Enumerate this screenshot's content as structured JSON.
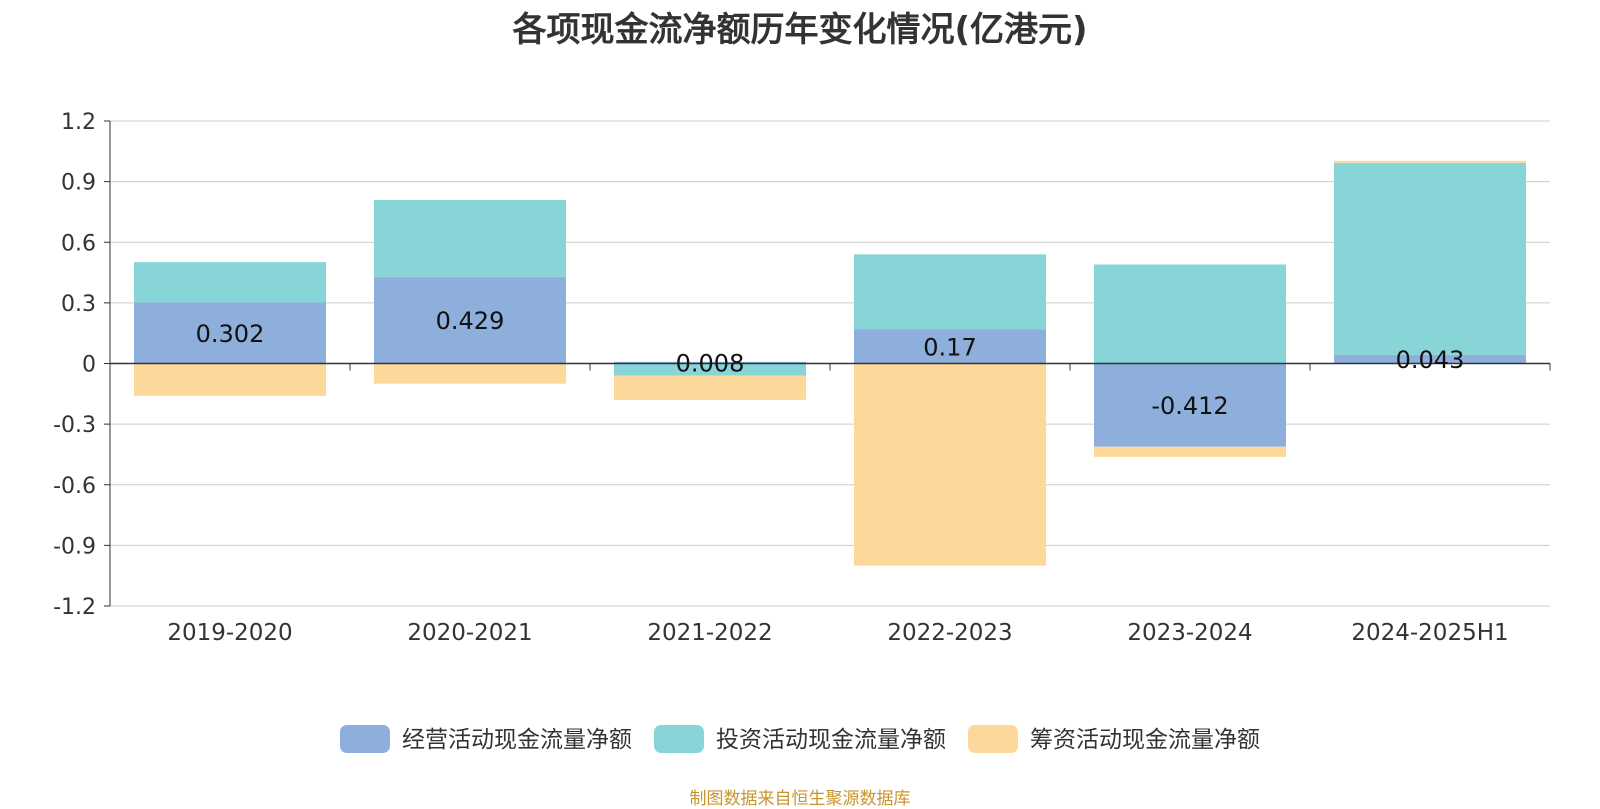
{
  "page": {
    "source_note": "制图数据来自恒生聚源数据库"
  },
  "chart_data": {
    "type": "bar",
    "stacked": true,
    "title": "各项现金流净额历年变化情况(亿港元)",
    "xlabel": "",
    "ylabel": "",
    "categories": [
      "2019-2020",
      "2020-2021",
      "2021-2022",
      "2022-2023",
      "2023-2024",
      "2024-2025H1"
    ],
    "ylim": [
      -1.2,
      1.2
    ],
    "yticks": [
      1.2,
      0.9,
      0.6,
      0.3,
      0,
      -0.3,
      -0.6,
      -0.9,
      -1.2
    ],
    "ytick_labels": [
      "1.2",
      "0.9",
      "0.6",
      "0.3",
      "0",
      "-0.3",
      "-0.6",
      "-0.9",
      "-1.2"
    ],
    "grid": true,
    "legend_position": "bottom",
    "series": [
      {
        "name": "经营活动现金流量净额",
        "color": "#8eaedc",
        "values": [
          0.302,
          0.429,
          0.008,
          0.17,
          -0.412,
          0.043
        ],
        "data_labels": [
          "0.302",
          "0.429",
          "0.008",
          "0.17",
          "-0.412",
          "0.043"
        ]
      },
      {
        "name": "投资活动现金流量净额",
        "color": "#88d5d8",
        "values": [
          0.2,
          0.38,
          -0.06,
          0.37,
          0.49,
          0.95
        ]
      },
      {
        "name": "筹资活动现金流量净额",
        "color": "#fdd89b",
        "values": [
          -0.16,
          -0.1,
          -0.12,
          -1.0,
          -0.05,
          0.01
        ]
      }
    ]
  }
}
